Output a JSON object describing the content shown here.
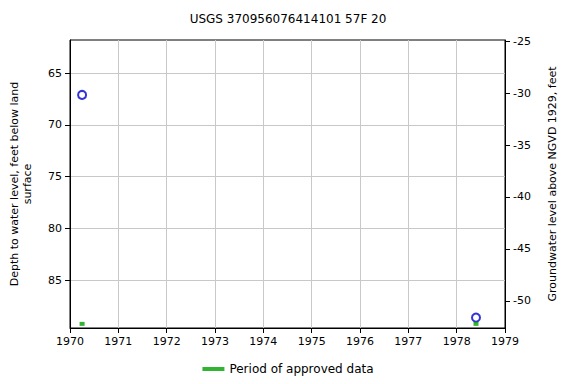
{
  "chart_data": {
    "type": "scatter",
    "title": "USGS 370956076414101 57F 20",
    "x": [
      1970.25,
      1978.4
    ],
    "series": [
      {
        "values": [
          67.1,
          88.6
        ],
        "color": "#0000cc",
        "marker": "circle-open"
      },
      {
        "name": "Period of approved data",
        "values": [
          89.2,
          89.2
        ],
        "color": "#00a000",
        "marker": "square"
      }
    ],
    "xlim": [
      1970,
      1979
    ],
    "xticks": [
      1970,
      1971,
      1972,
      1973,
      1974,
      1975,
      1976,
      1977,
      1978,
      1979
    ],
    "ylabel": "Depth to water level, feet below land\nsurface",
    "ylim": [
      61.8,
      89.6
    ],
    "yticks": [
      65,
      70,
      75,
      80,
      85
    ],
    "y2label": "Groundwater level above NGVD 1929, feet",
    "y2lim": [
      -24.9,
      -52.6
    ],
    "y2ticks": [
      -25,
      -30,
      -35,
      -40,
      -45,
      -50
    ],
    "grid": true,
    "legend": "bottom"
  }
}
